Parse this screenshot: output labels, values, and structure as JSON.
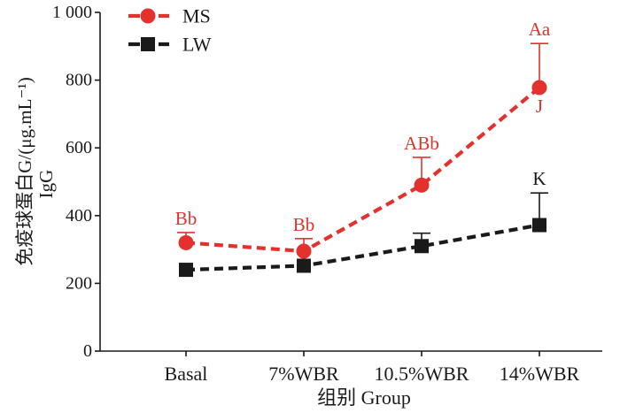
{
  "chart_data": {
    "type": "line",
    "categories": [
      "Basal",
      "7%WBR",
      "10.5%WBR",
      "14%WBR"
    ],
    "xlabel": "组别 Group",
    "ylabel": [
      "免疫球蛋白G/(μg.mL⁻¹)",
      "IgG"
    ],
    "ylim": [
      0,
      1000
    ],
    "yticks": [
      0,
      200,
      400,
      600,
      800,
      1000
    ],
    "ytick_labels": [
      "0",
      "200",
      "400",
      "600",
      "800",
      "1 000"
    ],
    "grid": false,
    "legend_placement": "top-left",
    "series": [
      {
        "name": "MS",
        "color": "#e5312d",
        "marker": "circle",
        "line_style": "dashed",
        "values": [
          320,
          295,
          490,
          778
        ],
        "error_upper": [
          30,
          37,
          82,
          130
        ]
      },
      {
        "name": "LW",
        "color": "#1a1a1a",
        "marker": "square",
        "line_style": "dashed",
        "values": [
          240,
          252,
          310,
          372
        ],
        "error_upper": [
          null,
          null,
          38,
          95
        ]
      }
    ],
    "annotations": [
      {
        "series": 0,
        "category": 0,
        "text": "Bb",
        "placement": "above"
      },
      {
        "series": 0,
        "category": 1,
        "text": "Bb",
        "placement": "above"
      },
      {
        "series": 0,
        "category": 2,
        "text": "ABb",
        "placement": "above"
      },
      {
        "series": 0,
        "category": 3,
        "text": "Aa",
        "placement": "above"
      },
      {
        "series": 0,
        "category": 3,
        "text": "J",
        "placement": "below"
      },
      {
        "series": 1,
        "category": 3,
        "text": "K",
        "placement": "above"
      }
    ]
  }
}
